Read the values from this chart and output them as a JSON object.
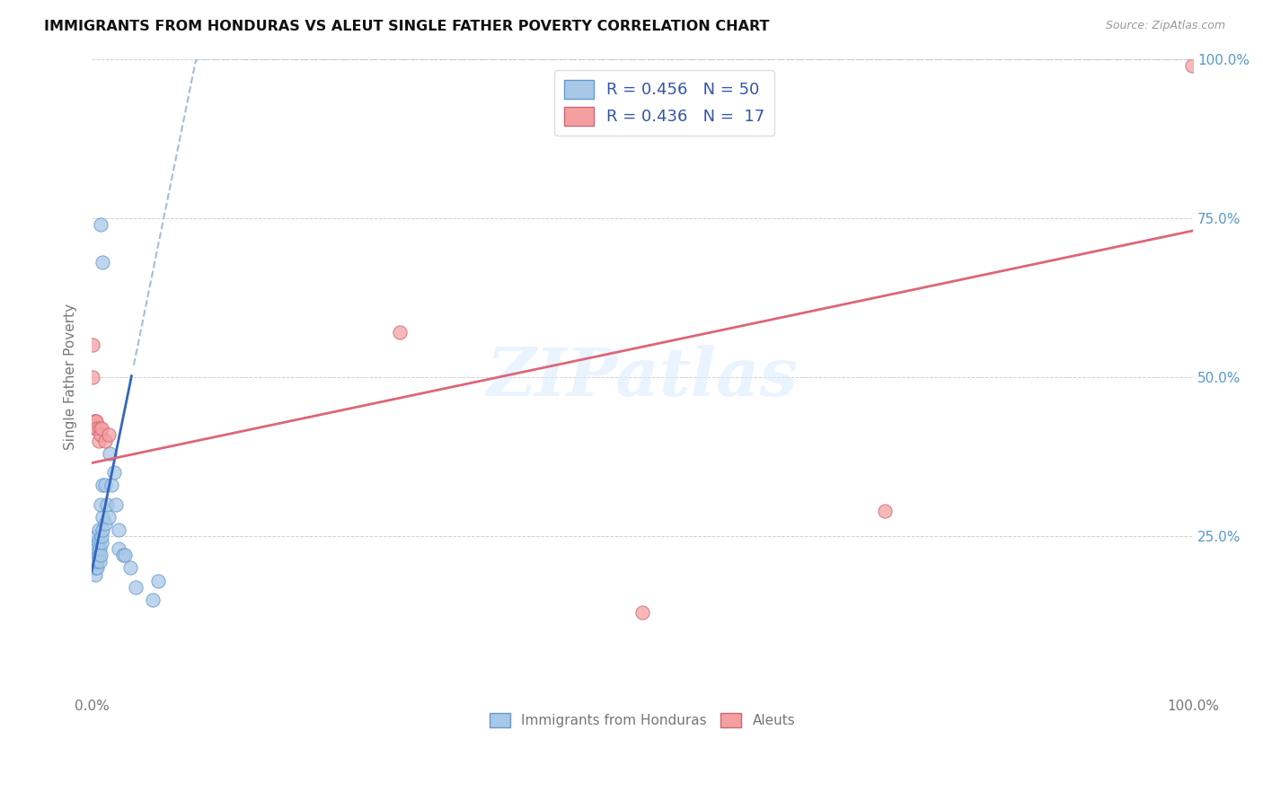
{
  "title": "IMMIGRANTS FROM HONDURAS VS ALEUT SINGLE FATHER POVERTY CORRELATION CHART",
  "source": "Source: ZipAtlas.com",
  "ylabel": "Single Father Poverty",
  "watermark": "ZIPatlas",
  "blue_color": "#a8c8e8",
  "blue_edge": "#6699cc",
  "pink_color": "#f4a0a0",
  "pink_edge": "#cc6677",
  "blue_line_color": "#3366bb",
  "pink_line_color": "#dd6677",
  "dashed_line_color": "#aabbdd",
  "legend_text_color": "#3355aa",
  "right_axis_color": "#5599cc",
  "blue_scatter_x": [
    0.001,
    0.001,
    0.001,
    0.002,
    0.002,
    0.002,
    0.002,
    0.002,
    0.003,
    0.003,
    0.003,
    0.003,
    0.003,
    0.004,
    0.004,
    0.004,
    0.005,
    0.005,
    0.005,
    0.005,
    0.006,
    0.006,
    0.006,
    0.007,
    0.007,
    0.008,
    0.008,
    0.009,
    0.009,
    0.01,
    0.01,
    0.01,
    0.012,
    0.012,
    0.014,
    0.015,
    0.016,
    0.018,
    0.02,
    0.022,
    0.024,
    0.024,
    0.028,
    0.03,
    0.035,
    0.04,
    0.055,
    0.06,
    0.008,
    0.01
  ],
  "blue_scatter_y": [
    0.2,
    0.22,
    0.23,
    0.2,
    0.21,
    0.22,
    0.23,
    0.24,
    0.19,
    0.21,
    0.22,
    0.23,
    0.24,
    0.2,
    0.22,
    0.24,
    0.2,
    0.21,
    0.23,
    0.25,
    0.22,
    0.24,
    0.26,
    0.21,
    0.23,
    0.22,
    0.3,
    0.24,
    0.25,
    0.26,
    0.28,
    0.33,
    0.27,
    0.33,
    0.3,
    0.28,
    0.38,
    0.33,
    0.35,
    0.3,
    0.23,
    0.26,
    0.22,
    0.22,
    0.2,
    0.17,
    0.15,
    0.18,
    0.74,
    0.68
  ],
  "pink_scatter_x": [
    0.001,
    0.001,
    0.002,
    0.003,
    0.003,
    0.004,
    0.005,
    0.006,
    0.007,
    0.008,
    0.009,
    0.012,
    0.015,
    0.28,
    0.5,
    0.72,
    0.999
  ],
  "pink_scatter_y": [
    0.55,
    0.5,
    0.43,
    0.42,
    0.43,
    0.43,
    0.42,
    0.4,
    0.42,
    0.41,
    0.42,
    0.4,
    0.41,
    0.57,
    0.13,
    0.29,
    0.99
  ],
  "xlim": [
    0.0,
    1.0
  ],
  "ylim": [
    0.0,
    1.0
  ],
  "x_ticks": [
    0.0,
    0.2,
    0.4,
    0.6,
    0.8,
    1.0
  ],
  "x_tick_labels": [
    "0.0%",
    "",
    "",
    "",
    "",
    "100.0%"
  ],
  "y_ticks": [
    0.0,
    0.25,
    0.5,
    0.75,
    1.0
  ],
  "y_tick_labels_right": [
    "",
    "25.0%",
    "50.0%",
    "75.0%",
    "100.0%"
  ]
}
